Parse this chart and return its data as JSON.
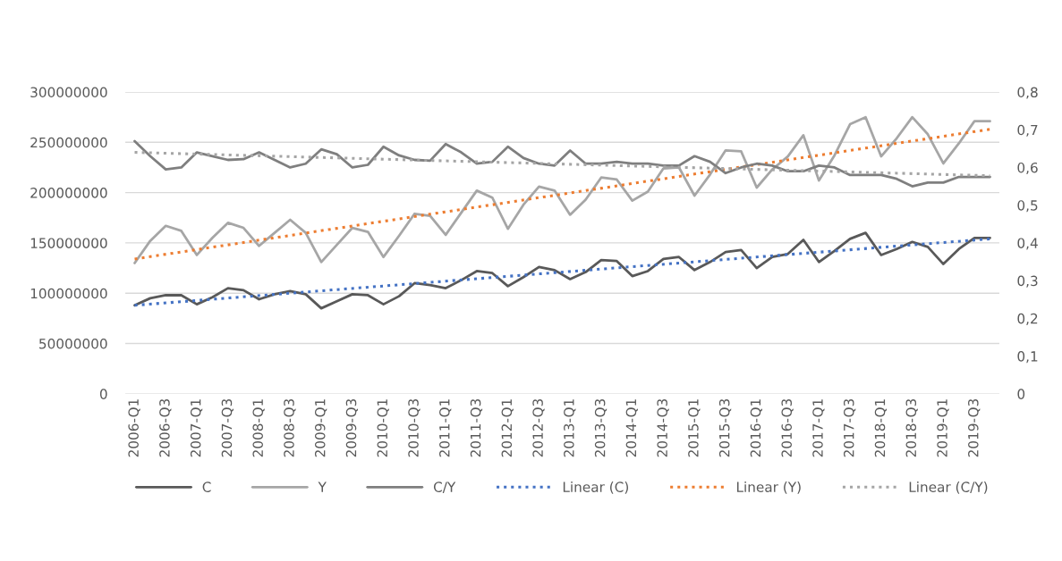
{
  "chart_data": {
    "type": "line",
    "categories": [
      "2006-Q1",
      null,
      "2006-Q3",
      null,
      "2007-Q1",
      null,
      "2007-Q3",
      null,
      "2008-Q1",
      null,
      "2008-Q3",
      null,
      "2009-Q1",
      null,
      "2009-Q3",
      null,
      "2010-Q1",
      null,
      "2010-Q3",
      null,
      "2011-Q1",
      null,
      "2011-Q3",
      null,
      "2012-Q1",
      null,
      "2012-Q3",
      null,
      "2013-Q1",
      null,
      "2013-Q3",
      null,
      "2014-Q1",
      null,
      "2014-Q3",
      null,
      "2015-Q1",
      null,
      "2015-Q3",
      null,
      "2016-Q1",
      null,
      "2016-Q3",
      null,
      "2017-Q1",
      null,
      "2017-Q3",
      null,
      "2018-Q1",
      null,
      "2018-Q3",
      null,
      "2019-Q1",
      null,
      "2019-Q3",
      null
    ],
    "series": [
      {
        "name": "C",
        "color": "#595959",
        "line_style": "solid",
        "values": [
          88000000,
          95000000,
          98000000,
          98000000,
          89000000,
          96000000,
          105000000,
          103000000,
          94000000,
          99000000,
          102000000,
          99000000,
          85000000,
          92000000,
          99000000,
          98000000,
          89000000,
          97000000,
          110000000,
          108000000,
          105000000,
          113000000,
          122000000,
          120000000,
          107000000,
          116000000,
          126000000,
          123000000,
          114000000,
          121000000,
          133000000,
          132000000,
          117000000,
          122000000,
          134000000,
          136000000,
          123000000,
          131000000,
          141000000,
          143000000,
          125000000,
          136000000,
          139000000,
          153000000,
          131000000,
          142000000,
          154000000,
          160000000,
          138000000,
          144000000,
          151000000,
          146000000,
          129000000,
          144000000,
          155000000,
          155000000
        ]
      },
      {
        "name": "Y",
        "color": "#a6a6a6",
        "line_style": "solid",
        "values": [
          130000000,
          152000000,
          167000000,
          162000000,
          138000000,
          155000000,
          170000000,
          165000000,
          147000000,
          160000000,
          173000000,
          160000000,
          131000000,
          148000000,
          165000000,
          161000000,
          136000000,
          157000000,
          179000000,
          177000000,
          158000000,
          180000000,
          202000000,
          195000000,
          164000000,
          188000000,
          206000000,
          202000000,
          178000000,
          193000000,
          215000000,
          213000000,
          192000000,
          201000000,
          224000000,
          225000000,
          197000000,
          218000000,
          242000000,
          241000000,
          205000000,
          223000000,
          236000000,
          257000000,
          212000000,
          237000000,
          268000000,
          275000000,
          236000000,
          254000000,
          275000000,
          258000000,
          229000000,
          249000000,
          271000000,
          271000000
        ]
      },
      {
        "name": "C/Y",
        "color": "#7f7f7f",
        "line_style": "solid",
        "axis": "y2",
        "values": [
          0.67,
          0.63,
          0.595,
          0.6,
          0.64,
          0.63,
          0.62,
          0.622,
          0.64,
          0.62,
          0.6,
          0.61,
          0.648,
          0.635,
          0.6,
          0.607,
          0.655,
          0.632,
          0.62,
          0.618,
          0.662,
          0.64,
          0.61,
          0.615,
          0.655,
          0.625,
          0.61,
          0.605,
          0.645,
          0.61,
          0.61,
          0.615,
          0.61,
          0.61,
          0.605,
          0.605,
          0.63,
          0.615,
          0.585,
          0.6,
          0.61,
          0.605,
          0.59,
          0.59,
          0.605,
          0.6,
          0.58,
          0.58,
          0.58,
          0.57,
          0.55,
          0.56,
          0.56,
          0.575,
          0.575,
          0.575
        ]
      },
      {
        "name": "Linear (C)",
        "color": "#4472c4",
        "line_style": "dotted",
        "values": [
          88000000,
          null,
          null,
          null,
          null,
          null,
          null,
          null,
          null,
          null,
          null,
          null,
          null,
          null,
          null,
          null,
          null,
          null,
          null,
          null,
          null,
          null,
          null,
          null,
          null,
          null,
          null,
          null,
          null,
          null,
          null,
          null,
          null,
          null,
          null,
          null,
          null,
          null,
          null,
          null,
          null,
          null,
          null,
          null,
          null,
          null,
          null,
          null,
          null,
          null,
          null,
          null,
          null,
          null,
          null,
          154000000
        ]
      },
      {
        "name": "Linear (Y)",
        "color": "#ed7d31",
        "line_style": "dotted",
        "values": [
          134000000,
          null,
          null,
          null,
          null,
          null,
          null,
          null,
          null,
          null,
          null,
          null,
          null,
          null,
          null,
          null,
          null,
          null,
          null,
          null,
          null,
          null,
          null,
          null,
          null,
          null,
          null,
          null,
          null,
          null,
          null,
          null,
          null,
          null,
          null,
          null,
          null,
          null,
          null,
          null,
          null,
          null,
          null,
          null,
          null,
          null,
          null,
          null,
          null,
          null,
          null,
          null,
          null,
          null,
          null,
          263000000
        ]
      },
      {
        "name": "Linear (C/Y)",
        "color": "#a5a5a5",
        "line_style": "dotted",
        "axis": "y2",
        "values": [
          0.64,
          null,
          null,
          null,
          null,
          null,
          null,
          null,
          null,
          null,
          null,
          null,
          null,
          null,
          null,
          null,
          null,
          null,
          null,
          null,
          null,
          null,
          null,
          null,
          null,
          null,
          null,
          null,
          null,
          null,
          null,
          null,
          null,
          null,
          null,
          null,
          null,
          null,
          null,
          null,
          null,
          null,
          null,
          null,
          null,
          null,
          null,
          null,
          null,
          null,
          null,
          null,
          null,
          null,
          null,
          0.578
        ]
      }
    ],
    "ylim": [
      0,
      300000000
    ],
    "yticks": [
      0,
      50000000,
      100000000,
      150000000,
      200000000,
      250000000,
      300000000
    ],
    "y2lim": [
      0,
      0.8
    ],
    "y2ticks": [
      {
        "value": 0,
        "label": "0"
      },
      {
        "value": 0.1,
        "label": "0,1"
      },
      {
        "value": 0.2,
        "label": "0,2"
      },
      {
        "value": 0.3,
        "label": "0,3"
      },
      {
        "value": 0.4,
        "label": "0,4"
      },
      {
        "value": 0.5,
        "label": "0,5"
      },
      {
        "value": 0.6,
        "label": "0,6"
      },
      {
        "value": 0.7,
        "label": "0,7"
      },
      {
        "value": 0.8,
        "label": "0,8"
      }
    ],
    "grid": "y",
    "legend": "bottom"
  }
}
